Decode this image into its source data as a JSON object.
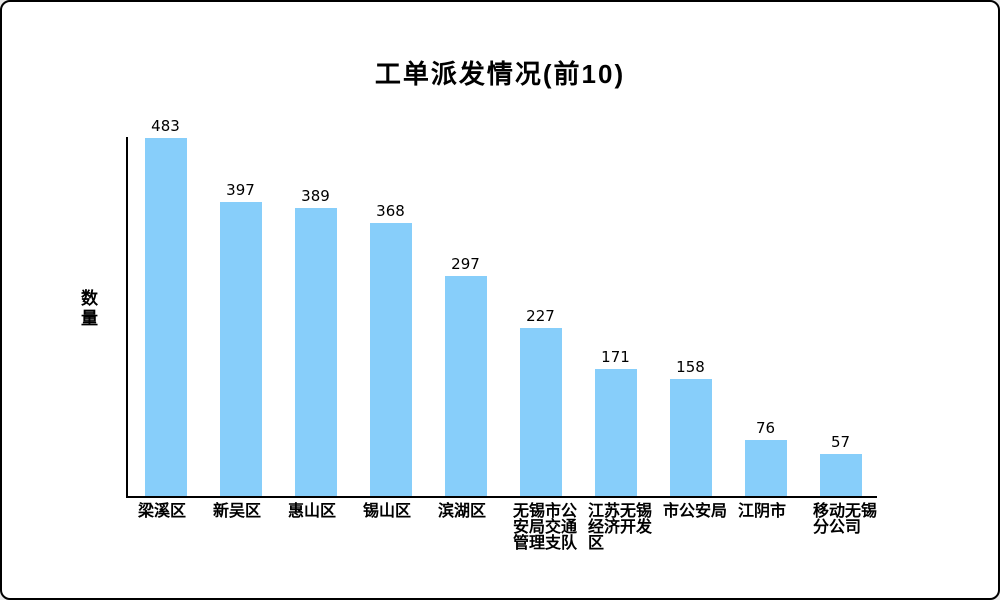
{
  "window": {
    "background": "#ffffff",
    "border_color": "#000000"
  },
  "chart_data": {
    "type": "bar",
    "title": "工单派发情况(前10)",
    "xlabel": "",
    "ylabel": "数量",
    "categories": [
      "梁溪区",
      "新吴区",
      "惠山区",
      "锡山区",
      "滨湖区",
      "无锡市公安局交通管理支队",
      "江苏无锡经济开发区",
      "市公安局",
      "江阴市",
      "移动无锡分公司"
    ],
    "values": [
      483,
      397,
      389,
      368,
      297,
      227,
      171,
      158,
      76,
      57
    ],
    "ylim": [
      0,
      483
    ],
    "bar_color": "#87CEFA",
    "axis_color": "#000000",
    "text_color": "#000000",
    "grid": false,
    "legend": "none",
    "value_labels": true
  }
}
